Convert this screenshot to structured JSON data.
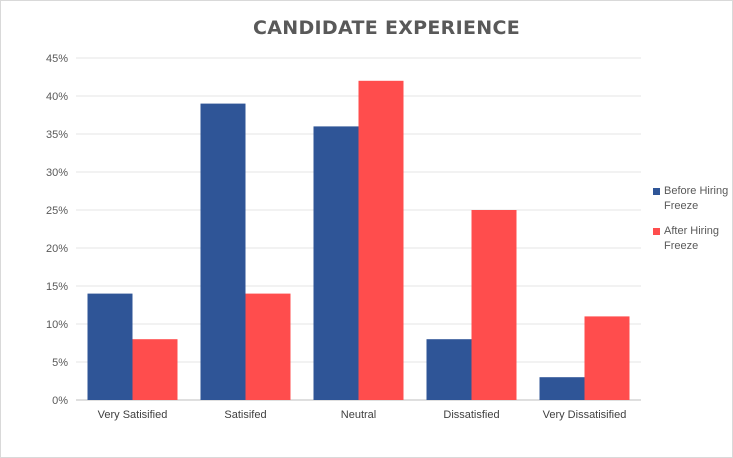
{
  "chart_data": {
    "type": "bar",
    "title": "CANDIDATE EXPERIENCE",
    "xlabel": "",
    "ylabel": "",
    "categories": [
      "Very Satisified",
      "Satisifed",
      "Neutral",
      "Dissatisfied",
      "Very Dissatisified"
    ],
    "series": [
      {
        "name": "Before Hiring Freeze",
        "values": [
          14,
          39,
          36,
          8,
          3
        ],
        "color": "#2f5597"
      },
      {
        "name": "After Hiring Freeze",
        "values": [
          8,
          14,
          42,
          25,
          11
        ],
        "color": "#ff4d4d"
      }
    ],
    "ylim": [
      0,
      45
    ],
    "yticks": [
      "0%",
      "5%",
      "10%",
      "15%",
      "20%",
      "25%",
      "30%",
      "35%",
      "40%",
      "45%"
    ],
    "grid": true,
    "legend_position": "right"
  }
}
